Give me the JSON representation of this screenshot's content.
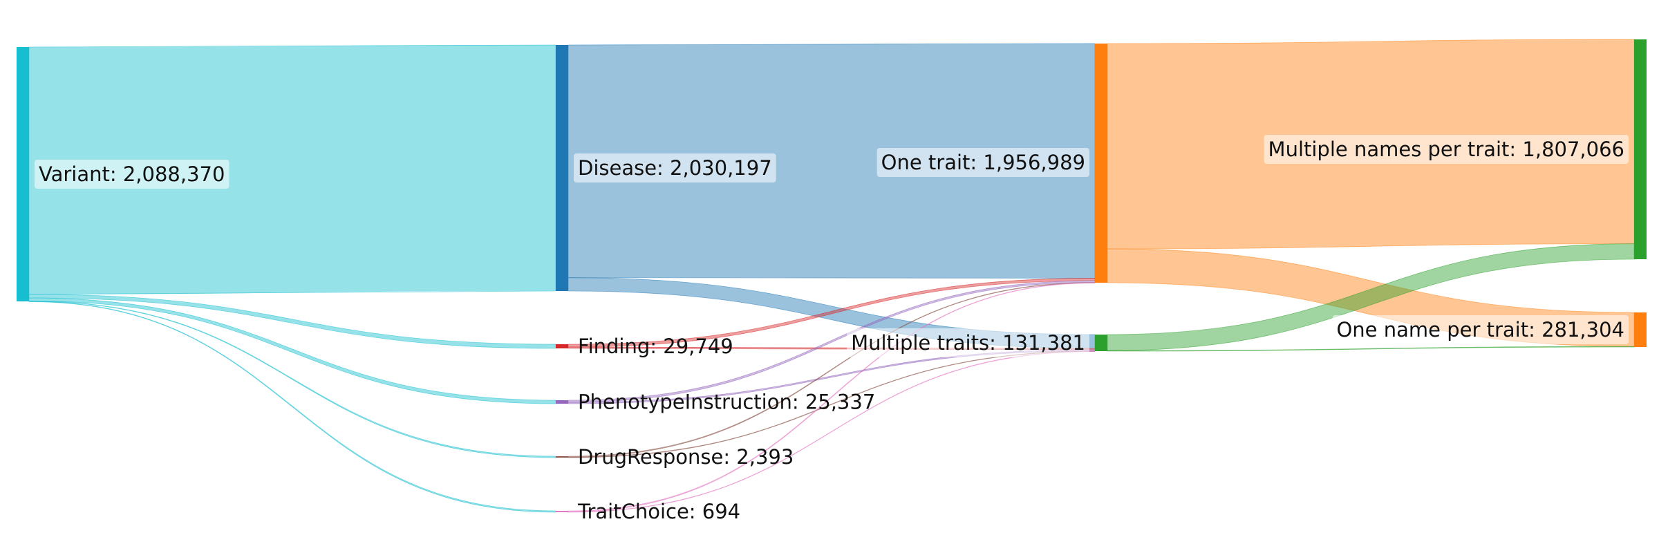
{
  "chart_data": {
    "type": "sankey",
    "nodes": [
      {
        "id": "variant",
        "label": "Variant: 2,088,370",
        "value": 2088370,
        "color": "#17becf",
        "column": 0
      },
      {
        "id": "disease",
        "label": "Disease: 2,030,197",
        "value": 2030197,
        "color": "#1f77b4",
        "column": 1
      },
      {
        "id": "finding",
        "label": "Finding: 29,749",
        "value": 29749,
        "color": "#d62728",
        "column": 1
      },
      {
        "id": "phenotype",
        "label": "PhenotypeInstruction: 25,337",
        "value": 25337,
        "color": "#9467bd",
        "column": 1
      },
      {
        "id": "drug",
        "label": "DrugResponse: 2,393",
        "value": 2393,
        "color": "#8c564b",
        "column": 1
      },
      {
        "id": "traitchoice",
        "label": "TraitChoice: 694",
        "value": 694,
        "color": "#e377c2",
        "column": 1
      },
      {
        "id": "onetrait",
        "label": "One trait: 1,956,989",
        "value": 1956989,
        "color": "#ff7f0e",
        "column": 2
      },
      {
        "id": "multitraits",
        "label": "Multiple traits: 131,381",
        "value": 131381,
        "color": "#2ca02c",
        "column": 2
      },
      {
        "id": "multinames",
        "label": "Multiple names per trait: 1,807,066",
        "value": 1807066,
        "color": "#2ca02c",
        "column": 3
      },
      {
        "id": "onename",
        "label": "One name per trait: 281,304",
        "value": 281304,
        "color": "#ff7f0e",
        "column": 3
      }
    ],
    "links": [
      {
        "source": "variant",
        "target": "disease",
        "value": 2030197
      },
      {
        "source": "variant",
        "target": "finding",
        "value": 29749
      },
      {
        "source": "variant",
        "target": "phenotype",
        "value": 25337
      },
      {
        "source": "variant",
        "target": "drug",
        "value": 2393
      },
      {
        "source": "variant",
        "target": "traitchoice",
        "value": 694
      },
      {
        "source": "disease",
        "target": "onetrait",
        "value": 1920000
      },
      {
        "source": "disease",
        "target": "multitraits",
        "value": 110197
      },
      {
        "source": "finding",
        "target": "onetrait",
        "value": 20000
      },
      {
        "source": "finding",
        "target": "multitraits",
        "value": 9749
      },
      {
        "source": "phenotype",
        "target": "onetrait",
        "value": 15000
      },
      {
        "source": "phenotype",
        "target": "multitraits",
        "value": 10337
      },
      {
        "source": "drug",
        "target": "onetrait",
        "value": 1500
      },
      {
        "source": "drug",
        "target": "multitraits",
        "value": 893
      },
      {
        "source": "traitchoice",
        "target": "onetrait",
        "value": 489
      },
      {
        "source": "traitchoice",
        "target": "multitraits",
        "value": 205
      },
      {
        "source": "onetrait",
        "target": "multinames",
        "value": 1680000
      },
      {
        "source": "onetrait",
        "target": "onename",
        "value": 276989
      },
      {
        "source": "multitraits",
        "target": "multinames",
        "value": 127066
      },
      {
        "source": "multitraits",
        "target": "onename",
        "value": 4315
      }
    ]
  }
}
